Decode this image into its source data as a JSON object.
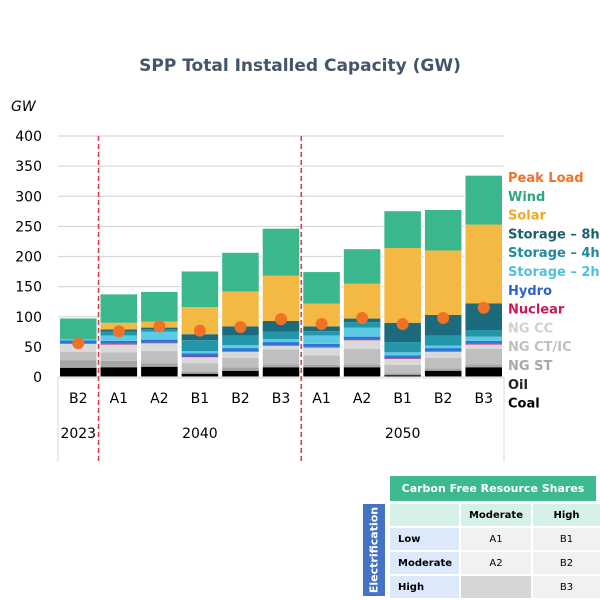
{
  "chart_data": {
    "type": "bar",
    "stacked": true,
    "title": "SPP Total Installed Capacity (GW)",
    "ylabel": "GW",
    "xlabel": "",
    "ylim": [
      0,
      400
    ],
    "yticks": [
      0,
      50,
      100,
      150,
      200,
      250,
      300,
      350,
      400
    ],
    "grid": true,
    "legend_position": "right",
    "groups": [
      {
        "label": "2023",
        "categories": [
          "B2"
        ]
      },
      {
        "label": "2040",
        "categories": [
          "A1",
          "A2",
          "B1",
          "B2",
          "B3"
        ]
      },
      {
        "label": "2050",
        "categories": [
          "A1",
          "A2",
          "B1",
          "B2",
          "B3"
        ]
      }
    ],
    "categories": [
      "2023 B2",
      "2040 A1",
      "2040 A2",
      "2040 B1",
      "2040 B2",
      "2040 B3",
      "2050 A1",
      "2050 A2",
      "2050 B1",
      "2050 B2",
      "2050 B3"
    ],
    "category_labels": [
      "B2",
      "A1",
      "A2",
      "B1",
      "B2",
      "B3",
      "A1",
      "A2",
      "B1",
      "B2",
      "B3"
    ],
    "series": [
      {
        "name": "Coal",
        "color": "#000000",
        "values": [
          15,
          16,
          17,
          5,
          10,
          16,
          16,
          16,
          3,
          10,
          16
        ]
      },
      {
        "name": "Oil",
        "color": "#7f7f7f",
        "values": [
          1,
          1,
          1,
          1,
          1,
          1,
          1,
          1,
          1,
          1,
          1
        ]
      },
      {
        "name": "NG ST",
        "color": "#a5a5a5",
        "values": [
          12,
          10,
          5,
          3,
          5,
          4,
          3,
          4,
          2,
          3,
          4
        ]
      },
      {
        "name": "NG CT/IC",
        "color": "#bfbfbf",
        "values": [
          14,
          14,
          20,
          14,
          16,
          25,
          16,
          26,
          14,
          18,
          26
        ]
      },
      {
        "name": "NG CC",
        "color": "#d9d9d9",
        "values": [
          13,
          13,
          13,
          10,
          10,
          6,
          13,
          14,
          10,
          10,
          7
        ]
      },
      {
        "name": "Nuclear",
        "color": "#c8195a",
        "values": [
          1,
          1,
          1,
          1,
          1,
          1,
          1,
          1,
          1,
          1,
          1
        ]
      },
      {
        "name": "Hydro",
        "color": "#2e75d6",
        "values": [
          5,
          5,
          5,
          5,
          5,
          5,
          5,
          5,
          5,
          5,
          5
        ]
      },
      {
        "name": "Storage – 2hr",
        "color": "#5bcbe3",
        "values": [
          2,
          9,
          13,
          4,
          5,
          5,
          14,
          15,
          5,
          4,
          7
        ]
      },
      {
        "name": "Storage – 4hr",
        "color": "#2496aa",
        "values": [
          0,
          6,
          4,
          18,
          16,
          12,
          7,
          9,
          17,
          17,
          11
        ]
      },
      {
        "name": "Storage – 8hr",
        "color": "#1c6b7c",
        "values": [
          0,
          4,
          3,
          10,
          15,
          18,
          8,
          6,
          32,
          34,
          44
        ]
      },
      {
        "name": "Solar",
        "color": "#f4b942",
        "values": [
          0,
          11,
          10,
          45,
          58,
          75,
          38,
          58,
          124,
          107,
          131
        ]
      },
      {
        "name": "Wind",
        "color": "#3ab88c",
        "values": [
          35,
          48,
          50,
          60,
          65,
          79,
          53,
          58,
          62,
          68,
          82
        ]
      }
    ],
    "peak_load": {
      "name": "Peak Load",
      "color": "#f07226",
      "values": [
        56,
        76,
        84,
        77,
        83,
        96,
        88,
        98,
        88,
        98,
        115
      ]
    },
    "legend": [
      {
        "label": "Peak Load",
        "color": "#f07226"
      },
      {
        "label": "Wind",
        "color": "#2fa77c"
      },
      {
        "label": "Solar",
        "color": "#f5a623"
      },
      {
        "label": "Storage – 8hr",
        "color": "#1c5f6f"
      },
      {
        "label": "Storage – 4hr",
        "color": "#1f8aa0"
      },
      {
        "label": "Storage – 2hr",
        "color": "#4fc2da"
      },
      {
        "label": "Hydro",
        "color": "#2e62d0"
      },
      {
        "label": "Nuclear",
        "color": "#c8195a"
      },
      {
        "label": "NG CC",
        "color": "#d0d0d0"
      },
      {
        "label": "NG CT/IC",
        "color": "#c0c0c0"
      },
      {
        "label": "NG ST",
        "color": "#a8a8a8"
      },
      {
        "label": "Oil",
        "color": "#222222"
      },
      {
        "label": "Coal",
        "color": "#000000"
      }
    ],
    "separator_color": "#d9414f"
  },
  "scenario_table": {
    "title": "Carbon Free Resource Shares",
    "side_label": "Electrification",
    "column_headers": [
      "",
      "Moderate",
      "High"
    ],
    "rows": [
      {
        "label": "Low",
        "cells": [
          "A1",
          "B1"
        ]
      },
      {
        "label": "Moderate",
        "cells": [
          "A2",
          "B2"
        ]
      },
      {
        "label": "High",
        "cells": [
          "",
          "B3"
        ]
      }
    ]
  }
}
